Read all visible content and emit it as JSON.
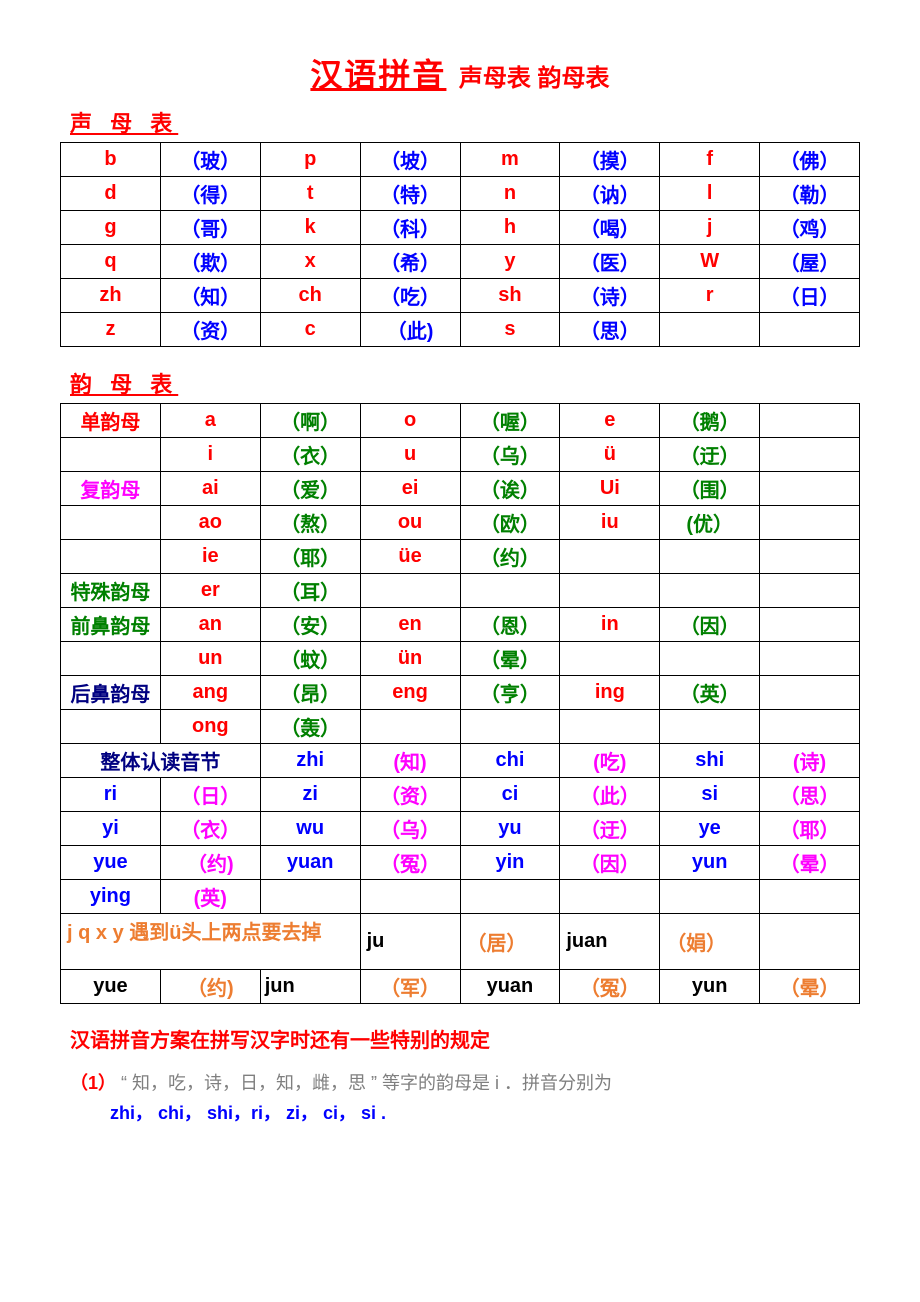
{
  "colors": {
    "red": "#ff0000",
    "blue": "#0000ff",
    "green": "#008000",
    "magenta": "#ff00ff",
    "orange": "#ed7d31",
    "black": "#000000",
    "gray": "#7f7f7f",
    "navy": "#000080",
    "border": "#000000",
    "background": "#ffffff"
  },
  "typography": {
    "title_main_fontsize": 32,
    "title_sub_fontsize": 24,
    "section_heading_fontsize": 22,
    "cell_fontsize": 20,
    "note_fontsize": 18,
    "font_family": "Microsoft YaHei, SimSun, Arial"
  },
  "title": {
    "main": "汉语拼音",
    "sub": "声母表 韵母表"
  },
  "section1": {
    "heading": "声 母 表"
  },
  "shengmu_table": {
    "columns": 8,
    "rows": [
      [
        {
          "t": "b",
          "c": "red"
        },
        {
          "t": "（玻）",
          "c": "blue"
        },
        {
          "t": "p",
          "c": "red"
        },
        {
          "t": "（坡）",
          "c": "blue"
        },
        {
          "t": "m",
          "c": "red"
        },
        {
          "t": "（摸）",
          "c": "blue"
        },
        {
          "t": "f",
          "c": "red"
        },
        {
          "t": "（佛）",
          "c": "blue"
        }
      ],
      [
        {
          "t": "d",
          "c": "red"
        },
        {
          "t": "（得）",
          "c": "blue"
        },
        {
          "t": "t",
          "c": "red"
        },
        {
          "t": "（特）",
          "c": "blue"
        },
        {
          "t": "n",
          "c": "red"
        },
        {
          "t": "（讷）",
          "c": "blue"
        },
        {
          "t": "l",
          "c": "red"
        },
        {
          "t": "（勒）",
          "c": "blue"
        }
      ],
      [
        {
          "t": "g",
          "c": "red"
        },
        {
          "t": "（哥）",
          "c": "blue"
        },
        {
          "t": "k",
          "c": "red"
        },
        {
          "t": "（科）",
          "c": "blue"
        },
        {
          "t": "h",
          "c": "red"
        },
        {
          "t": "（喝）",
          "c": "blue"
        },
        {
          "t": "j",
          "c": "red"
        },
        {
          "t": "（鸡）",
          "c": "blue"
        }
      ],
      [
        {
          "t": "q",
          "c": "red"
        },
        {
          "t": "（欺）",
          "c": "blue"
        },
        {
          "t": "x",
          "c": "red"
        },
        {
          "t": "（希）",
          "c": "blue"
        },
        {
          "t": "y",
          "c": "red"
        },
        {
          "t": "（医）",
          "c": "blue"
        },
        {
          "t": "W",
          "c": "red"
        },
        {
          "t": "（屋）",
          "c": "blue"
        }
      ],
      [
        {
          "t": "zh",
          "c": "red"
        },
        {
          "t": "（知）",
          "c": "blue"
        },
        {
          "t": "ch",
          "c": "red"
        },
        {
          "t": "（吃）",
          "c": "blue"
        },
        {
          "t": "sh",
          "c": "red"
        },
        {
          "t": "（诗）",
          "c": "blue"
        },
        {
          "t": "r",
          "c": "red"
        },
        {
          "t": "（日）",
          "c": "blue"
        }
      ],
      [
        {
          "t": "z",
          "c": "red"
        },
        {
          "t": "（资）",
          "c": "blue"
        },
        {
          "t": "c",
          "c": "red"
        },
        {
          "t": "（此)",
          "c": "blue"
        },
        {
          "t": "s",
          "c": "red"
        },
        {
          "t": "（思）",
          "c": "blue"
        },
        {
          "t": "",
          "c": "black"
        },
        {
          "t": "",
          "c": "black"
        }
      ]
    ]
  },
  "section2": {
    "heading": "韵 母 表"
  },
  "yunmu_table": {
    "columns": 8,
    "rows": [
      [
        {
          "t": "单韵母",
          "c": "red"
        },
        {
          "t": "a",
          "c": "red"
        },
        {
          "t": "（啊）",
          "c": "green"
        },
        {
          "t": "o",
          "c": "red"
        },
        {
          "t": "（喔）",
          "c": "green"
        },
        {
          "t": "e",
          "c": "red"
        },
        {
          "t": "（鹅）",
          "c": "green"
        },
        {
          "t": "",
          "c": "black"
        }
      ],
      [
        {
          "t": "",
          "c": "black"
        },
        {
          "t": "i",
          "c": "red"
        },
        {
          "t": "（衣）",
          "c": "green"
        },
        {
          "t": "u",
          "c": "red"
        },
        {
          "t": "（乌）",
          "c": "green"
        },
        {
          "t": "ü",
          "c": "red"
        },
        {
          "t": "（迂）",
          "c": "green"
        },
        {
          "t": "",
          "c": "black"
        }
      ],
      [
        {
          "t": "复韵母",
          "c": "magenta"
        },
        {
          "t": "ai",
          "c": "red"
        },
        {
          "t": "（爱）",
          "c": "green"
        },
        {
          "t": "ei",
          "c": "red"
        },
        {
          "t": "（诶）",
          "c": "green"
        },
        {
          "t": "Ui",
          "c": "red"
        },
        {
          "t": "（围）",
          "c": "green"
        },
        {
          "t": "",
          "c": "black"
        }
      ],
      [
        {
          "t": "",
          "c": "black"
        },
        {
          "t": "ao",
          "c": "red"
        },
        {
          "t": "（熬）",
          "c": "green"
        },
        {
          "t": "ou",
          "c": "red"
        },
        {
          "t": "（欧）",
          "c": "green"
        },
        {
          "t": "iu",
          "c": "red"
        },
        {
          "t": "(优）",
          "c": "green"
        },
        {
          "t": "",
          "c": "black"
        }
      ],
      [
        {
          "t": "",
          "c": "black"
        },
        {
          "t": "ie",
          "c": "red"
        },
        {
          "t": "（耶）",
          "c": "green"
        },
        {
          "t": "üe",
          "c": "red"
        },
        {
          "t": "（约）",
          "c": "green"
        },
        {
          "t": "",
          "c": "black"
        },
        {
          "t": "",
          "c": "black"
        },
        {
          "t": "",
          "c": "black"
        }
      ],
      [
        {
          "t": "特殊韵母",
          "c": "green"
        },
        {
          "t": "er",
          "c": "red"
        },
        {
          "t": "（耳）",
          "c": "green"
        },
        {
          "t": "",
          "c": "black"
        },
        {
          "t": "",
          "c": "black"
        },
        {
          "t": "",
          "c": "black"
        },
        {
          "t": "",
          "c": "black"
        },
        {
          "t": "",
          "c": "black"
        }
      ],
      [
        {
          "t": "前鼻韵母",
          "c": "green"
        },
        {
          "t": "an",
          "c": "red"
        },
        {
          "t": "（安）",
          "c": "green"
        },
        {
          "t": "en",
          "c": "red"
        },
        {
          "t": "（恩）",
          "c": "green"
        },
        {
          "t": "in",
          "c": "red"
        },
        {
          "t": "（因）",
          "c": "green"
        },
        {
          "t": "",
          "c": "black"
        }
      ],
      [
        {
          "t": "",
          "c": "black"
        },
        {
          "t": "un",
          "c": "red"
        },
        {
          "t": "（蚊）",
          "c": "green"
        },
        {
          "t": "ün",
          "c": "red"
        },
        {
          "t": "（晕）",
          "c": "green"
        },
        {
          "t": "",
          "c": "black"
        },
        {
          "t": "",
          "c": "black"
        },
        {
          "t": "",
          "c": "black"
        }
      ],
      [
        {
          "t": "后鼻韵母",
          "c": "navy"
        },
        {
          "t": "ang",
          "c": "red"
        },
        {
          "t": "（昂）",
          "c": "green"
        },
        {
          "t": "eng",
          "c": "red"
        },
        {
          "t": "（亨）",
          "c": "green"
        },
        {
          "t": "ing",
          "c": "red"
        },
        {
          "t": "（英）",
          "c": "green"
        },
        {
          "t": "",
          "c": "black"
        }
      ],
      [
        {
          "t": "",
          "c": "black"
        },
        {
          "t": "ong",
          "c": "red"
        },
        {
          "t": "（轰）",
          "c": "green"
        },
        {
          "t": "",
          "c": "black"
        },
        {
          "t": "",
          "c": "black"
        },
        {
          "t": "",
          "c": "black"
        },
        {
          "t": "",
          "c": "black"
        },
        {
          "t": "",
          "c": "black"
        }
      ],
      [
        {
          "t": "整体认读音节",
          "c": "navy",
          "span": 2
        },
        {
          "t": "zhi",
          "c": "blue"
        },
        {
          "t": "(知)",
          "c": "magenta"
        },
        {
          "t": "chi",
          "c": "blue"
        },
        {
          "t": "(吃)",
          "c": "magenta"
        },
        {
          "t": "shi",
          "c": "blue"
        },
        {
          "t": "(诗)",
          "c": "magenta"
        }
      ],
      [
        {
          "t": "ri",
          "c": "blue"
        },
        {
          "t": "（日）",
          "c": "magenta"
        },
        {
          "t": "zi",
          "c": "blue"
        },
        {
          "t": "（资）",
          "c": "magenta"
        },
        {
          "t": "ci",
          "c": "blue"
        },
        {
          "t": "（此）",
          "c": "magenta"
        },
        {
          "t": "si",
          "c": "blue"
        },
        {
          "t": "（思）",
          "c": "magenta"
        }
      ],
      [
        {
          "t": "yi",
          "c": "blue"
        },
        {
          "t": "（衣）",
          "c": "magenta"
        },
        {
          "t": "wu",
          "c": "blue"
        },
        {
          "t": "（乌）",
          "c": "magenta"
        },
        {
          "t": "yu",
          "c": "blue"
        },
        {
          "t": "（迂）",
          "c": "magenta"
        },
        {
          "t": "ye",
          "c": "blue"
        },
        {
          "t": "（耶）",
          "c": "magenta"
        }
      ],
      [
        {
          "t": "yue",
          "c": "blue"
        },
        {
          "t": "（约)",
          "c": "magenta"
        },
        {
          "t": "yuan",
          "c": "blue"
        },
        {
          "t": "（冤）",
          "c": "magenta"
        },
        {
          "t": "yin",
          "c": "blue"
        },
        {
          "t": "（因）",
          "c": "magenta"
        },
        {
          "t": "yun",
          "c": "blue"
        },
        {
          "t": "（晕）",
          "c": "magenta"
        }
      ],
      [
        {
          "t": "ying",
          "c": "blue"
        },
        {
          "t": "(英)",
          "c": "magenta"
        },
        {
          "t": "",
          "c": "black"
        },
        {
          "t": "",
          "c": "black"
        },
        {
          "t": "",
          "c": "black"
        },
        {
          "t": "",
          "c": "black"
        },
        {
          "t": "",
          "c": "black"
        },
        {
          "t": "",
          "c": "black"
        }
      ],
      [
        {
          "t": "j q x y 遇到ü头上两点要去掉",
          "c": "orange",
          "span": 3,
          "align": "left",
          "ruleRow": true
        },
        {
          "t": "ju",
          "c": "black"
        },
        {
          "t": "（居）",
          "c": "orange"
        },
        {
          "t": "juan",
          "c": "black"
        },
        {
          "t": "（娟）",
          "c": "orange"
        },
        {
          "t": "",
          "c": "black"
        }
      ],
      [
        {
          "t": "yue",
          "c": "black"
        },
        {
          "t": "（约)",
          "c": "orange"
        },
        {
          "t": "jun",
          "c": "black",
          "align": "left"
        },
        {
          "t": "（军）",
          "c": "orange"
        },
        {
          "t": "yuan",
          "c": "black"
        },
        {
          "t": "（冤）",
          "c": "orange"
        },
        {
          "t": "yun",
          "c": "black"
        },
        {
          "t": "（晕）",
          "c": "orange"
        }
      ]
    ]
  },
  "notes": {
    "heading": "汉语拼音方案在拼写汉字时还有一些特别的规定",
    "line1_idx": "（1）",
    "line1_gray": "“ 知，吃，诗，日，知，雌，思 ” 等字的韵母是  i ．拼音分别为",
    "line2": "zhi，  chi，  shi，ri，  zi，  ci，  si ."
  }
}
